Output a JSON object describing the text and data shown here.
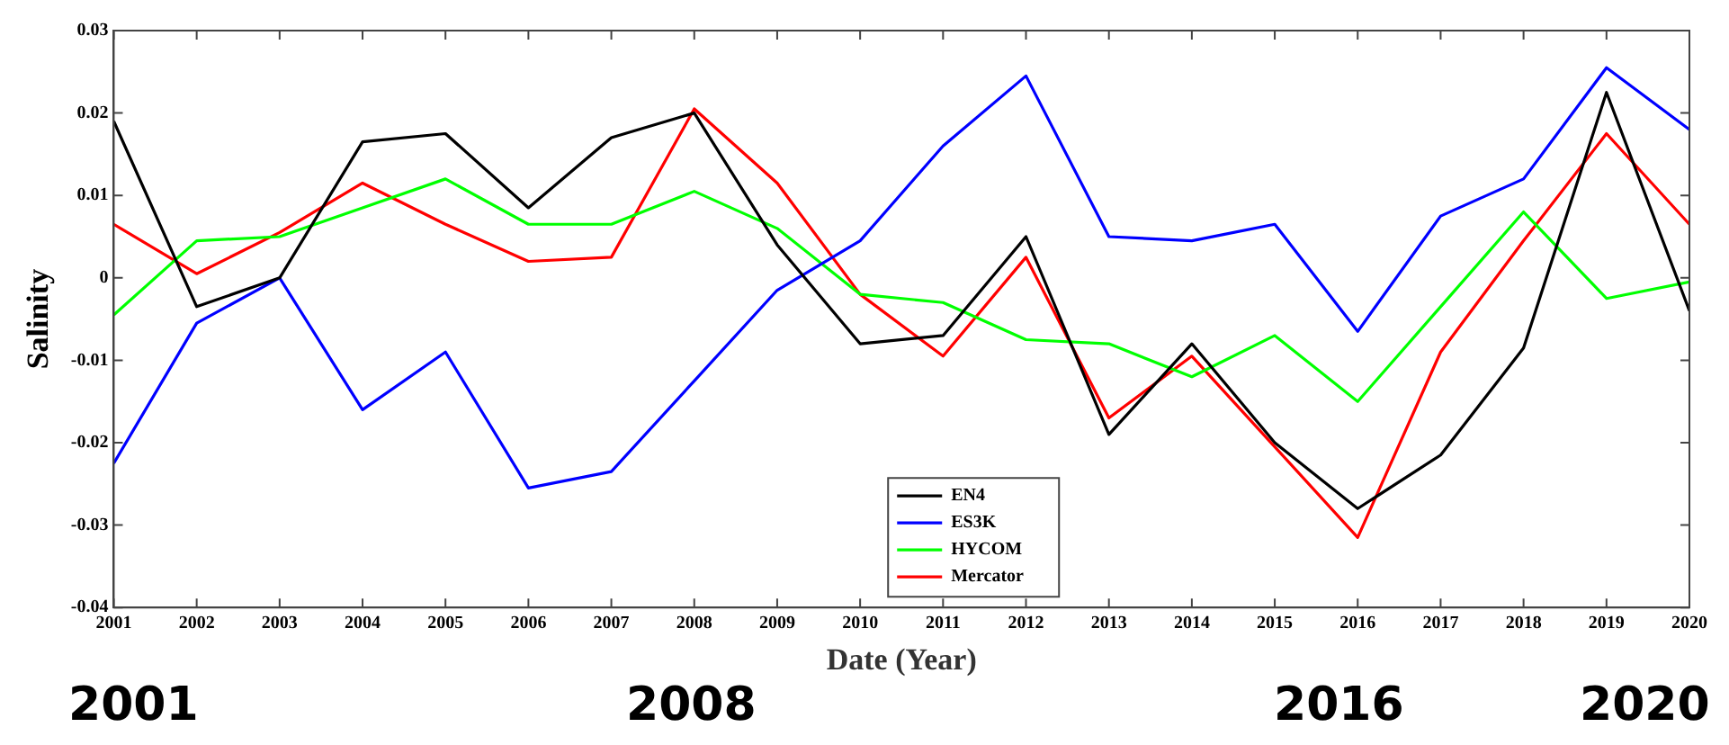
{
  "chart_data": {
    "type": "line",
    "xlabel": "Date (Year)",
    "ylabel": "Salinity",
    "x": [
      2001,
      2002,
      2003,
      2004,
      2005,
      2006,
      2007,
      2008,
      2009,
      2010,
      2011,
      2012,
      2013,
      2014,
      2015,
      2016,
      2017,
      2018,
      2019,
      2020
    ],
    "series": [
      {
        "name": "EN4",
        "color": "#000000",
        "values": [
          0.019,
          -0.0035,
          0,
          0.0165,
          0.0175,
          0.0085,
          0.017,
          0.02,
          0.004,
          -0.008,
          -0.007,
          0.005,
          -0.019,
          -0.008,
          -0.02,
          -0.028,
          -0.0215,
          -0.0085,
          0.0225,
          -0.004
        ]
      },
      {
        "name": "ES3K",
        "color": "#0000ff",
        "values": [
          -0.0225,
          -0.0055,
          0,
          -0.016,
          -0.009,
          -0.0255,
          -0.0235,
          -0.0125,
          -0.0015,
          0.0045,
          0.016,
          0.0245,
          0.005,
          0.0045,
          0.0065,
          -0.0065,
          0.0075,
          0.012,
          0.0255,
          0.018
        ]
      },
      {
        "name": "HYCOM",
        "color": "#00ff00",
        "values": [
          -0.0045,
          0.0045,
          0.005,
          0.0085,
          0.012,
          0.0065,
          0.0065,
          0.0105,
          0.006,
          -0.002,
          -0.003,
          -0.0075,
          -0.008,
          -0.012,
          -0.007,
          -0.015,
          -0.0035,
          0.008,
          -0.0025,
          -0.0005
        ]
      },
      {
        "name": "Mercator",
        "color": "#ff0000",
        "values": [
          0.0065,
          0.0005,
          0.0055,
          0.0115,
          0.0065,
          0.002,
          0.0025,
          0.0205,
          0.0115,
          -0.002,
          -0.0095,
          0.0025,
          -0.017,
          -0.0095,
          -0.0205,
          -0.0315,
          -0.009,
          0.0045,
          0.0175,
          0.0065
        ]
      }
    ],
    "xlim": [
      2001,
      2020
    ],
    "xticks": [
      2001,
      2002,
      2003,
      2004,
      2005,
      2006,
      2007,
      2008,
      2009,
      2010,
      2011,
      2012,
      2013,
      2014,
      2015,
      2016,
      2017,
      2018,
      2019,
      2020
    ],
    "ylim": [
      -0.04,
      0.03
    ],
    "yticks": [
      -0.04,
      -0.03,
      -0.02,
      -0.01,
      0,
      0.01,
      0.02,
      0.03
    ],
    "grid": false,
    "legend": "bottom",
    "marker": "none",
    "line_style": "solid",
    "annotations": [
      "2001",
      "2008",
      "2016",
      "2020"
    ]
  }
}
